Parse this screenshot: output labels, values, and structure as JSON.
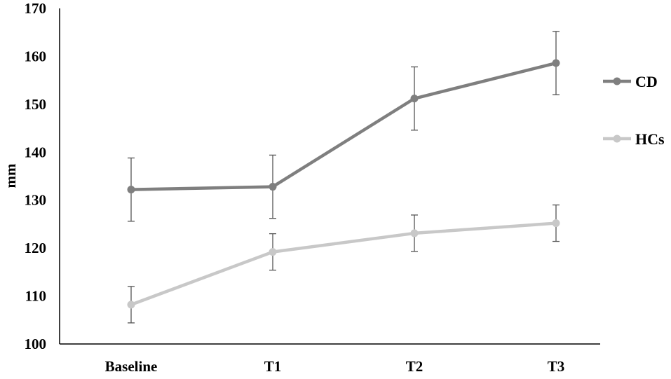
{
  "chart_data": {
    "type": "line",
    "title": "",
    "xlabel": "",
    "ylabel": "mm",
    "categories": [
      "Baseline",
      "T1",
      "T2",
      "T3"
    ],
    "ylim": [
      100,
      170
    ],
    "yticks": [
      100,
      110,
      120,
      130,
      140,
      150,
      160,
      170
    ],
    "grid": false,
    "legend_position": "right",
    "series": [
      {
        "name": "CD",
        "color": "#7f7f7f",
        "values": [
          132.2,
          132.8,
          151.2,
          158.6
        ],
        "error": [
          6.6,
          6.6,
          6.6,
          6.6
        ]
      },
      {
        "name": "HCs",
        "color": "#c8c8c8",
        "values": [
          108.2,
          119.2,
          123.1,
          125.2
        ],
        "error": [
          3.8,
          3.8,
          3.8,
          3.8
        ]
      }
    ]
  }
}
